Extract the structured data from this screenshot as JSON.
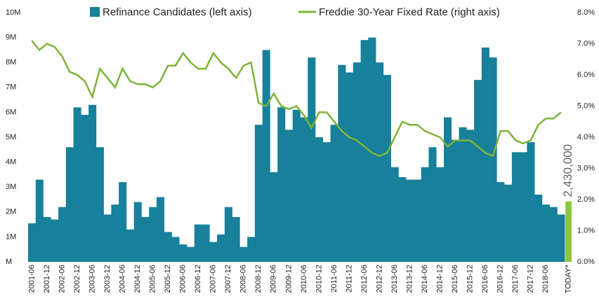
{
  "chart_data": {
    "type": "bar_line",
    "categories": [
      "2001-06",
      null,
      "2001-12",
      null,
      "2002-06",
      null,
      "2002-12",
      null,
      "2003-06",
      null,
      "2003-12",
      null,
      "2004-06",
      null,
      "2004-12",
      null,
      "2005-06",
      null,
      "2005-12",
      null,
      "2006-06",
      null,
      "2006-12",
      null,
      "2007-06",
      null,
      "2007-12",
      null,
      "2008-06",
      null,
      "2008-12",
      null,
      "2009-06",
      null,
      "2009-12",
      null,
      "2010-06",
      null,
      "2010-12",
      null,
      "2011-06",
      null,
      "2011-12",
      null,
      "2012-06",
      null,
      "2012-12",
      null,
      "2013-06",
      null,
      "2013-12",
      null,
      "2014-06",
      null,
      "2014-12",
      null,
      "2015-06",
      null,
      "2015-12",
      null,
      "2016-06",
      null,
      "2016-12",
      null,
      "2017-06",
      null,
      "2017-12",
      null,
      "2018-06",
      null,
      null
    ],
    "series": [
      {
        "name": "Refinance Candidates (left axis)",
        "color": "#17809a",
        "axis": "y",
        "values": [
          1550000,
          3300000,
          1800000,
          1700000,
          2200000,
          4600000,
          6200000,
          5900000,
          6300000,
          4600000,
          1900000,
          2300000,
          3200000,
          1300000,
          2400000,
          1800000,
          2200000,
          2600000,
          1200000,
          1000000,
          700000,
          600000,
          1500000,
          1500000,
          800000,
          1100000,
          2200000,
          1800000,
          600000,
          1000000,
          5500000,
          8500000,
          3600000,
          6200000,
          5300000,
          6100000,
          5800000,
          8200000,
          5000000,
          4800000,
          5500000,
          7900000,
          7600000,
          8000000,
          8900000,
          9000000,
          8000000,
          7500000,
          3800000,
          3400000,
          3300000,
          3300000,
          3800000,
          4600000,
          3800000,
          5800000,
          4900000,
          5400000,
          5300000,
          7300000,
          8600000,
          8200000,
          3200000,
          3100000,
          4400000,
          4400000,
          4800000,
          2700000,
          2300000,
          2200000,
          1900000
        ]
      },
      {
        "name": "Freddie 30-Year Fixed Rate (right axis)",
        "color": "#7db43a",
        "axis": "y2",
        "values": [
          7.1,
          6.8,
          7.0,
          6.9,
          6.6,
          6.1,
          6.0,
          5.8,
          5.3,
          6.2,
          5.9,
          5.6,
          6.2,
          5.8,
          5.7,
          5.7,
          5.6,
          5.8,
          6.3,
          6.3,
          6.7,
          6.4,
          6.2,
          6.2,
          6.7,
          6.4,
          6.2,
          5.9,
          6.3,
          6.4,
          5.1,
          5.0,
          5.4,
          5.0,
          4.9,
          5.0,
          4.7,
          4.3,
          4.8,
          4.8,
          4.5,
          4.2,
          4.0,
          3.9,
          3.7,
          3.5,
          3.4,
          3.5,
          4.0,
          4.5,
          4.4,
          4.4,
          4.2,
          4.1,
          4.0,
          3.7,
          3.9,
          3.9,
          3.9,
          3.7,
          3.5,
          3.4,
          4.2,
          4.2,
          3.9,
          3.8,
          3.9,
          4.4,
          4.6,
          4.6,
          4.8
        ]
      }
    ],
    "today": {
      "category": "TODAY*",
      "value": 2430000,
      "value_label": "2,430,000",
      "color": "#8cc63f"
    },
    "ylim": [
      0,
      10000000
    ],
    "yticks": [
      {
        "value": 0,
        "label": "M"
      },
      {
        "value": 1000000,
        "label": "1M"
      },
      {
        "value": 2000000,
        "label": "2M"
      },
      {
        "value": 3000000,
        "label": "3M"
      },
      {
        "value": 4000000,
        "label": "4M"
      },
      {
        "value": 5000000,
        "label": "5M"
      },
      {
        "value": 6000000,
        "label": "6M"
      },
      {
        "value": 7000000,
        "label": "7M"
      },
      {
        "value": 8000000,
        "label": "8M"
      },
      {
        "value": 9000000,
        "label": "9M"
      },
      {
        "value": 10000000,
        "label": "10M"
      }
    ],
    "y2lim": [
      0,
      8
    ],
    "y2ticks": [
      {
        "value": 0,
        "label": "0.0%"
      },
      {
        "value": 1,
        "label": "1.0%"
      },
      {
        "value": 2,
        "label": "2.0%"
      },
      {
        "value": 3,
        "label": "3.0%"
      },
      {
        "value": 4,
        "label": "4.0%"
      },
      {
        "value": 5,
        "label": "5.0%"
      },
      {
        "value": 6,
        "label": "6.0%"
      },
      {
        "value": 7,
        "label": "7.0%"
      },
      {
        "value": 8,
        "label": "8.0%"
      }
    ],
    "grid": false
  }
}
